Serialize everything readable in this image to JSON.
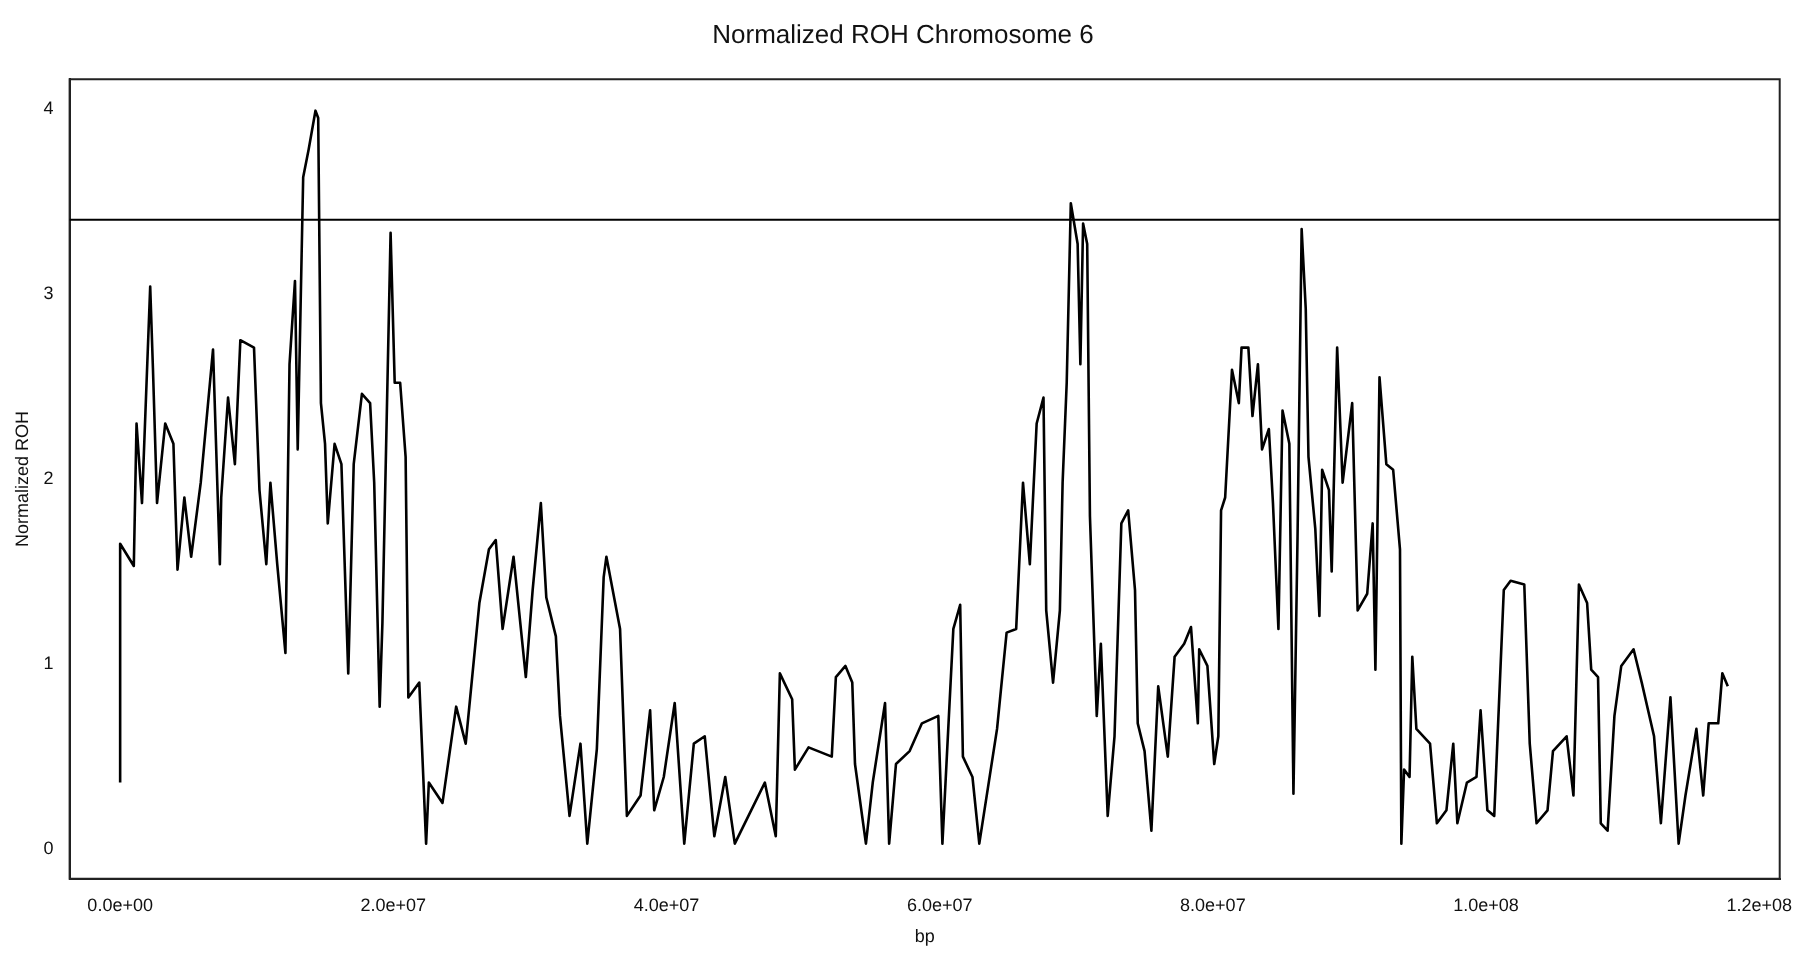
{
  "chart_data": {
    "type": "line",
    "title": "Normalized ROH Chromosome 6",
    "xlabel": "bp",
    "ylabel": "Normalized ROH",
    "x": [
      0,
      0,
      0,
      1000000,
      1200000,
      1600000,
      2200000,
      2400000,
      2700000,
      3300000,
      3900000,
      4200000,
      4700000,
      5200000,
      5900000,
      6800000,
      7300000,
      7400000,
      7900000,
      8400000,
      8800000,
      9800000,
      10200000,
      10700000,
      11000000,
      11500000,
      12100000,
      12400000,
      12800000,
      13000000,
      13400000,
      13800000,
      14300000,
      14500000,
      14700000,
      15000000,
      15200000,
      15700000,
      16200000,
      16700000,
      17100000,
      17700000,
      18300000,
      18600000,
      19000000,
      19200000,
      19800000,
      20100000,
      20500000,
      20900000,
      21100000,
      21900000,
      22400000,
      22600000,
      23600000,
      24600000,
      25300000,
      26300000,
      27000000,
      27500000,
      28000000,
      28800000,
      29700000,
      30200000,
      30800000,
      31200000,
      31900000,
      32200000,
      32900000,
      33700000,
      34200000,
      34900000,
      35400000,
      35600000,
      36600000,
      37100000,
      38100000,
      38800000,
      39100000,
      39800000,
      40600000,
      41300000,
      42000000,
      42800000,
      43500000,
      44300000,
      45000000,
      46000000,
      47200000,
      48000000,
      48300000,
      49200000,
      49400000,
      50400000,
      52100000,
      52400000,
      53100000,
      53600000,
      53800000,
      54600000,
      55100000,
      56000000,
      56300000,
      56800000,
      57800000,
      58700000,
      59900000,
      60200000,
      61000000,
      61500000,
      61700000,
      62400000,
      62900000,
      64200000,
      64900000,
      65600000,
      66100000,
      66600000,
      67100000,
      67600000,
      67800000,
      68300000,
      68800000,
      69000000,
      69300000,
      69600000,
      70100000,
      70300000,
      70500000,
      70800000,
      71000000,
      71500000,
      71800000,
      72300000,
      72800000,
      73300000,
      73800000,
      74300000,
      74500000,
      75000000,
      75500000,
      76000000,
      76700000,
      77200000,
      77900000,
      78400000,
      78900000,
      79000000,
      79600000,
      80100000,
      80400000,
      80600000,
      80900000,
      81400000,
      81900000,
      82100000,
      82600000,
      82900000,
      83300000,
      83600000,
      84100000,
      84400000,
      84800000,
      85100000,
      85600000,
      85900000,
      86200000,
      86500000,
      86800000,
      87000000,
      87500000,
      87800000,
      88000000,
      88500000,
      88700000,
      89100000,
      89500000,
      90200000,
      90600000,
      91300000,
      91700000,
      91900000,
      92200000,
      92700000,
      93200000,
      93700000,
      93800000,
      94000000,
      94400000,
      94600000,
      94900000,
      95900000,
      96400000,
      97100000,
      97600000,
      97900000,
      98600000,
      99300000,
      99600000,
      100100000,
      100600000,
      100800000,
      101300000,
      101800000,
      102800000,
      103200000,
      103700000,
      104500000,
      104900000,
      105900000,
      106400000,
      106800000,
      107400000,
      107700000,
      108200000,
      108400000,
      108900000,
      109400000,
      109900000,
      110800000,
      111400000,
      112300000,
      112800000,
      113500000,
      114100000,
      114600000,
      115400000,
      115900000,
      116300000,
      117000000,
      117300000,
      117700000
    ],
    "series": [
      {
        "color": "#000000",
        "values": [
          0.36,
          1.09,
          1.65,
          1.53,
          2.3,
          1.87,
          3.04,
          2.6,
          1.87,
          2.3,
          2.19,
          1.51,
          1.9,
          1.58,
          1.98,
          2.7,
          1.54,
          1.9,
          2.44,
          2.08,
          2.75,
          2.71,
          1.94,
          1.54,
          1.98,
          1.54,
          1.06,
          2.62,
          3.07,
          2.16,
          3.63,
          3.78,
          3.99,
          3.95,
          2.41,
          2.19,
          1.76,
          2.19,
          2.08,
          0.95,
          2.08,
          2.46,
          2.41,
          1.98,
          0.77,
          1.22,
          3.33,
          2.52,
          2.52,
          2.12,
          0.82,
          0.9,
          0.03,
          0.36,
          0.25,
          0.77,
          0.57,
          1.33,
          1.62,
          1.67,
          1.19,
          1.58,
          0.93,
          1.4,
          1.87,
          1.36,
          1.15,
          0.72,
          0.18,
          0.57,
          0.03,
          0.54,
          1.47,
          1.58,
          1.19,
          0.18,
          0.29,
          0.75,
          0.21,
          0.39,
          0.79,
          0.03,
          0.57,
          0.61,
          0.07,
          0.39,
          0.03,
          0.18,
          0.36,
          0.07,
          0.95,
          0.81,
          0.43,
          0.55,
          0.5,
          0.93,
          0.99,
          0.9,
          0.46,
          0.03,
          0.36,
          0.79,
          0.03,
          0.46,
          0.53,
          0.68,
          0.72,
          0.03,
          1.19,
          1.32,
          0.5,
          0.39,
          0.03,
          0.65,
          1.17,
          1.19,
          1.98,
          1.54,
          2.3,
          2.44,
          1.29,
          0.9,
          1.29,
          1.98,
          2.52,
          3.49,
          3.27,
          2.62,
          3.38,
          3.27,
          1.8,
          0.72,
          1.11,
          0.18,
          0.61,
          1.76,
          1.83,
          1.4,
          0.68,
          0.53,
          0.1,
          0.88,
          0.5,
          1.04,
          1.11,
          1.2,
          0.68,
          1.08,
          0.99,
          0.46,
          0.61,
          1.83,
          1.9,
          2.59,
          2.41,
          2.71,
          2.71,
          2.34,
          2.62,
          2.16,
          2.27,
          1.87,
          1.19,
          2.37,
          2.19,
          0.3,
          1.69,
          3.35,
          2.92,
          2.12,
          1.73,
          1.26,
          2.05,
          1.94,
          1.5,
          2.71,
          1.98,
          2.41,
          1.29,
          1.38,
          1.76,
          0.97,
          2.55,
          2.08,
          2.05,
          1.62,
          0.03,
          0.43,
          0.39,
          1.04,
          0.65,
          0.57,
          0.14,
          0.21,
          0.57,
          0.14,
          0.36,
          0.39,
          0.75,
          0.21,
          0.18,
          0.53,
          1.4,
          1.45,
          1.43,
          0.57,
          0.14,
          0.21,
          0.53,
          0.61,
          0.29,
          1.43,
          1.33,
          0.97,
          0.93,
          0.14,
          0.1,
          0.72,
          0.99,
          1.08,
          0.9,
          0.61,
          0.14,
          0.82,
          0.03,
          0.29,
          0.65,
          0.29,
          0.68,
          0.68,
          0.95,
          0.88
        ]
      }
    ],
    "xlim": [
      -3700000,
      121500000
    ],
    "xticks": [
      {
        "value": 0,
        "label": "0.0e+00"
      },
      {
        "value": 20000000,
        "label": "2.0e+07"
      },
      {
        "value": 40000000,
        "label": "4.0e+07"
      },
      {
        "value": 60000000,
        "label": "6.0e+07"
      },
      {
        "value": 80000000,
        "label": "8.0e+07"
      },
      {
        "value": 100000000,
        "label": "1.0e+08"
      },
      {
        "value": 120000000,
        "label": "1.2e+08"
      }
    ],
    "ylim": [
      -0.16,
      4.16
    ],
    "yticks": [
      0,
      1,
      2,
      3,
      4
    ],
    "ref_lines": [
      {
        "axis": "y",
        "value": 3.4,
        "color": "#000000"
      }
    ],
    "grid": false,
    "legend": false,
    "marker": "none",
    "line_style": "solid"
  }
}
